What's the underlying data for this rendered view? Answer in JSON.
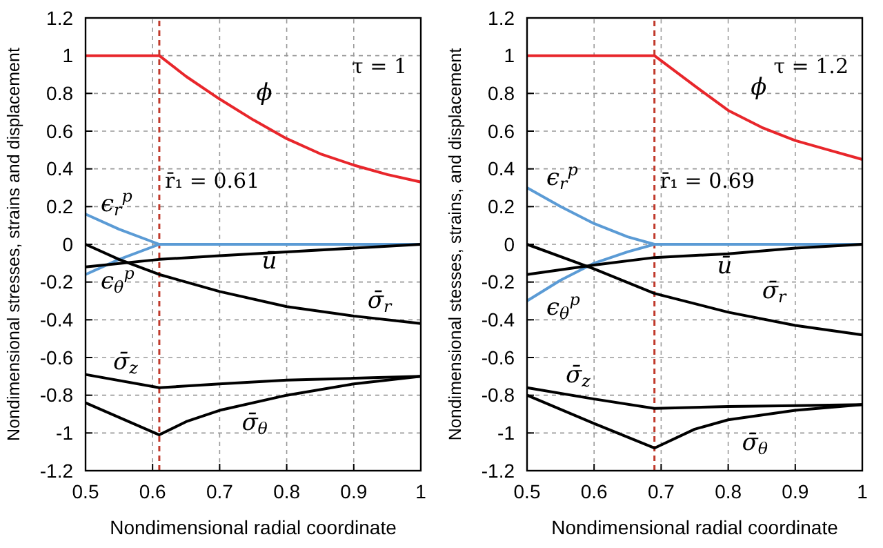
{
  "chart_data": [
    {
      "type": "line",
      "xlabel": "Nondimensional radial coordinate",
      "ylabel": "Nondimensional stresses, strains and displacement",
      "xlim": [
        0.5,
        1
      ],
      "ylim": [
        -1.2,
        1.2
      ],
      "xticks": [
        0.5,
        0.6,
        0.7,
        0.8,
        0.9,
        1
      ],
      "yticks": [
        -1.2,
        -1,
        -0.8,
        -0.6,
        -0.4,
        -0.2,
        0,
        0.2,
        0.4,
        0.6,
        0.8,
        1,
        1.2
      ],
      "grid": true,
      "annotations": [
        "τ = 1"
      ],
      "ref_lines": [
        {
          "axis": "x",
          "value": 0.61,
          "label": "r̄₁ = 0.61",
          "color": "#c0392b",
          "line_style": "dashed"
        }
      ],
      "series": [
        {
          "name": "ϕ",
          "color": "#e8262b",
          "x": [
            0.5,
            0.61,
            0.65,
            0.7,
            0.75,
            0.8,
            0.85,
            0.9,
            0.95,
            1
          ],
          "values": [
            1,
            1,
            0.89,
            0.77,
            0.66,
            0.56,
            0.48,
            0.42,
            0.37,
            0.33
          ]
        },
        {
          "name": "ϵ$_{r}$$^{p}$",
          "color": "#5b9bd5",
          "x": [
            0.5,
            0.55,
            0.61,
            0.7,
            0.8,
            0.9,
            1
          ],
          "values": [
            0.16,
            0.08,
            0,
            0,
            0,
            0,
            0
          ]
        },
        {
          "name": "ϵ$_{θ}$$^{p}$",
          "color": "#5b9bd5",
          "x": [
            0.5,
            0.55,
            0.61
          ],
          "values": [
            -0.16,
            -0.08,
            0
          ]
        },
        {
          "name": "ū",
          "color": "#000000",
          "x": [
            0.5,
            0.61,
            0.7,
            0.8,
            0.9,
            1
          ],
          "values": [
            -0.12,
            -0.08,
            -0.06,
            -0.04,
            -0.02,
            0
          ]
        },
        {
          "name": "σ̄$_{r}$",
          "color": "#000000",
          "x": [
            0.5,
            0.55,
            0.61,
            0.7,
            0.8,
            0.9,
            1
          ],
          "values": [
            0,
            -0.08,
            -0.16,
            -0.25,
            -0.33,
            -0.38,
            -0.42
          ]
        },
        {
          "name": "σ̄$_{z}$",
          "color": "#000000",
          "x": [
            0.5,
            0.61,
            0.7,
            0.8,
            0.9,
            1
          ],
          "values": [
            -0.69,
            -0.76,
            -0.74,
            -0.72,
            -0.71,
            -0.7
          ]
        },
        {
          "name": "σ̄$_{θ}$",
          "color": "#000000",
          "x": [
            0.5,
            0.61,
            0.65,
            0.7,
            0.8,
            0.9,
            1
          ],
          "values": [
            -0.84,
            -1.01,
            -0.94,
            -0.88,
            -0.8,
            -0.74,
            -0.7
          ]
        }
      ]
    },
    {
      "type": "line",
      "xlabel": "Nondimensional radial coordinate",
      "ylabel": "Nondimensional stesses, strains, and displacement",
      "xlim": [
        0.5,
        1
      ],
      "ylim": [
        -1.2,
        1.2
      ],
      "xticks": [
        0.5,
        0.6,
        0.7,
        0.8,
        0.9,
        1
      ],
      "yticks": [
        -1.2,
        -1,
        -0.8,
        -0.6,
        -0.4,
        -0.2,
        0,
        0.2,
        0.4,
        0.6,
        0.8,
        1,
        1.2
      ],
      "grid": true,
      "annotations": [
        "τ = 1.2"
      ],
      "ref_lines": [
        {
          "axis": "x",
          "value": 0.69,
          "label": "r̄₁ = 0.69",
          "color": "#c0392b",
          "line_style": "dashed"
        }
      ],
      "series": [
        {
          "name": "ϕ",
          "color": "#e8262b",
          "x": [
            0.5,
            0.69,
            0.75,
            0.8,
            0.85,
            0.9,
            0.95,
            1
          ],
          "values": [
            1,
            1,
            0.84,
            0.71,
            0.62,
            0.55,
            0.5,
            0.45
          ]
        },
        {
          "name": "ϵ$_{r}$$^{p}$",
          "color": "#5b9bd5",
          "x": [
            0.5,
            0.55,
            0.6,
            0.65,
            0.69,
            0.8,
            0.9,
            1
          ],
          "values": [
            0.3,
            0.2,
            0.11,
            0.04,
            0,
            0,
            0,
            0
          ]
        },
        {
          "name": "ϵ$_{θ}$$^{p}$",
          "color": "#5b9bd5",
          "x": [
            0.5,
            0.55,
            0.6,
            0.65,
            0.69
          ],
          "values": [
            -0.3,
            -0.19,
            -0.1,
            -0.04,
            0
          ]
        },
        {
          "name": "ū",
          "color": "#000000",
          "x": [
            0.5,
            0.6,
            0.69,
            0.8,
            0.9,
            1
          ],
          "values": [
            -0.16,
            -0.11,
            -0.07,
            -0.05,
            -0.02,
            0
          ]
        },
        {
          "name": "σ̄$_{r}$",
          "color": "#000000",
          "x": [
            0.5,
            0.6,
            0.69,
            0.8,
            0.9,
            1
          ],
          "values": [
            0,
            -0.13,
            -0.26,
            -0.36,
            -0.43,
            -0.48
          ]
        },
        {
          "name": "σ̄$_{z}$",
          "color": "#000000",
          "x": [
            0.5,
            0.6,
            0.69,
            0.8,
            0.9,
            1
          ],
          "values": [
            -0.76,
            -0.82,
            -0.87,
            -0.86,
            -0.855,
            -0.85
          ]
        },
        {
          "name": "σ̄$_{θ}$",
          "color": "#000000",
          "x": [
            0.5,
            0.6,
            0.69,
            0.75,
            0.8,
            0.9,
            1
          ],
          "values": [
            -0.8,
            -0.95,
            -1.08,
            -0.98,
            -0.93,
            -0.88,
            -0.85
          ]
        }
      ]
    }
  ]
}
